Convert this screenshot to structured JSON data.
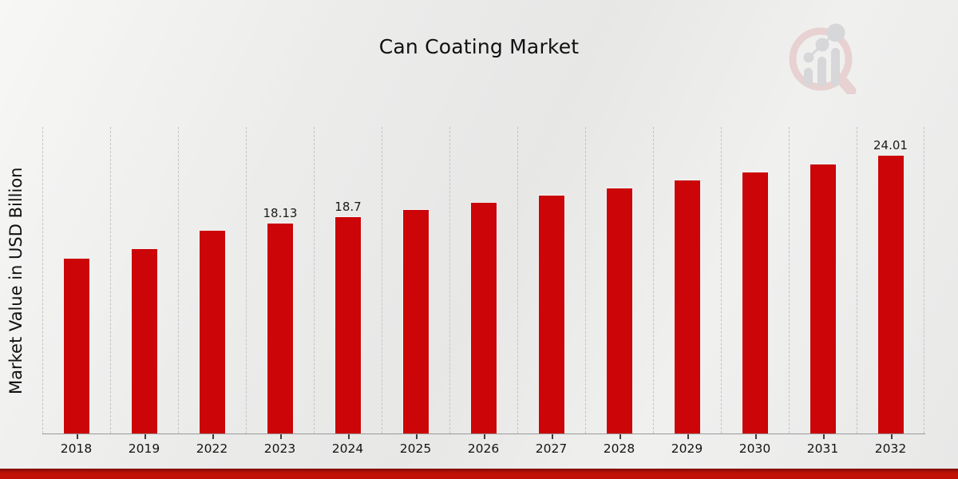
{
  "title": "Can Coating Market",
  "chart_data": {
    "type": "bar",
    "title": "Can Coating Market",
    "xlabel": "",
    "ylabel": "Market Value in USD Billion",
    "categories": [
      "2018",
      "2019",
      "2022",
      "2023",
      "2024",
      "2025",
      "2026",
      "2027",
      "2028",
      "2029",
      "2030",
      "2031",
      "2032"
    ],
    "values": [
      15.1,
      15.95,
      17.55,
      18.13,
      18.7,
      19.29,
      19.9,
      20.53,
      21.18,
      21.85,
      22.55,
      23.26,
      24.01
    ],
    "data_labels": {
      "2023": "18.13",
      "2024": "18.7",
      "2032": "24.01"
    },
    "ylim": [
      0,
      26.46
    ],
    "grid": "vertical-dashed-between-categories",
    "legend": "none",
    "bar_color": "#cb0508"
  },
  "colors": {
    "bar": "#cb0508",
    "band_top": "#7e0c08",
    "band_main": "#c01207",
    "background": "#ececeb",
    "logo_rose": "#e6cccc",
    "logo_gray": "#d3d3d6"
  },
  "footer_band": {
    "present": true
  }
}
